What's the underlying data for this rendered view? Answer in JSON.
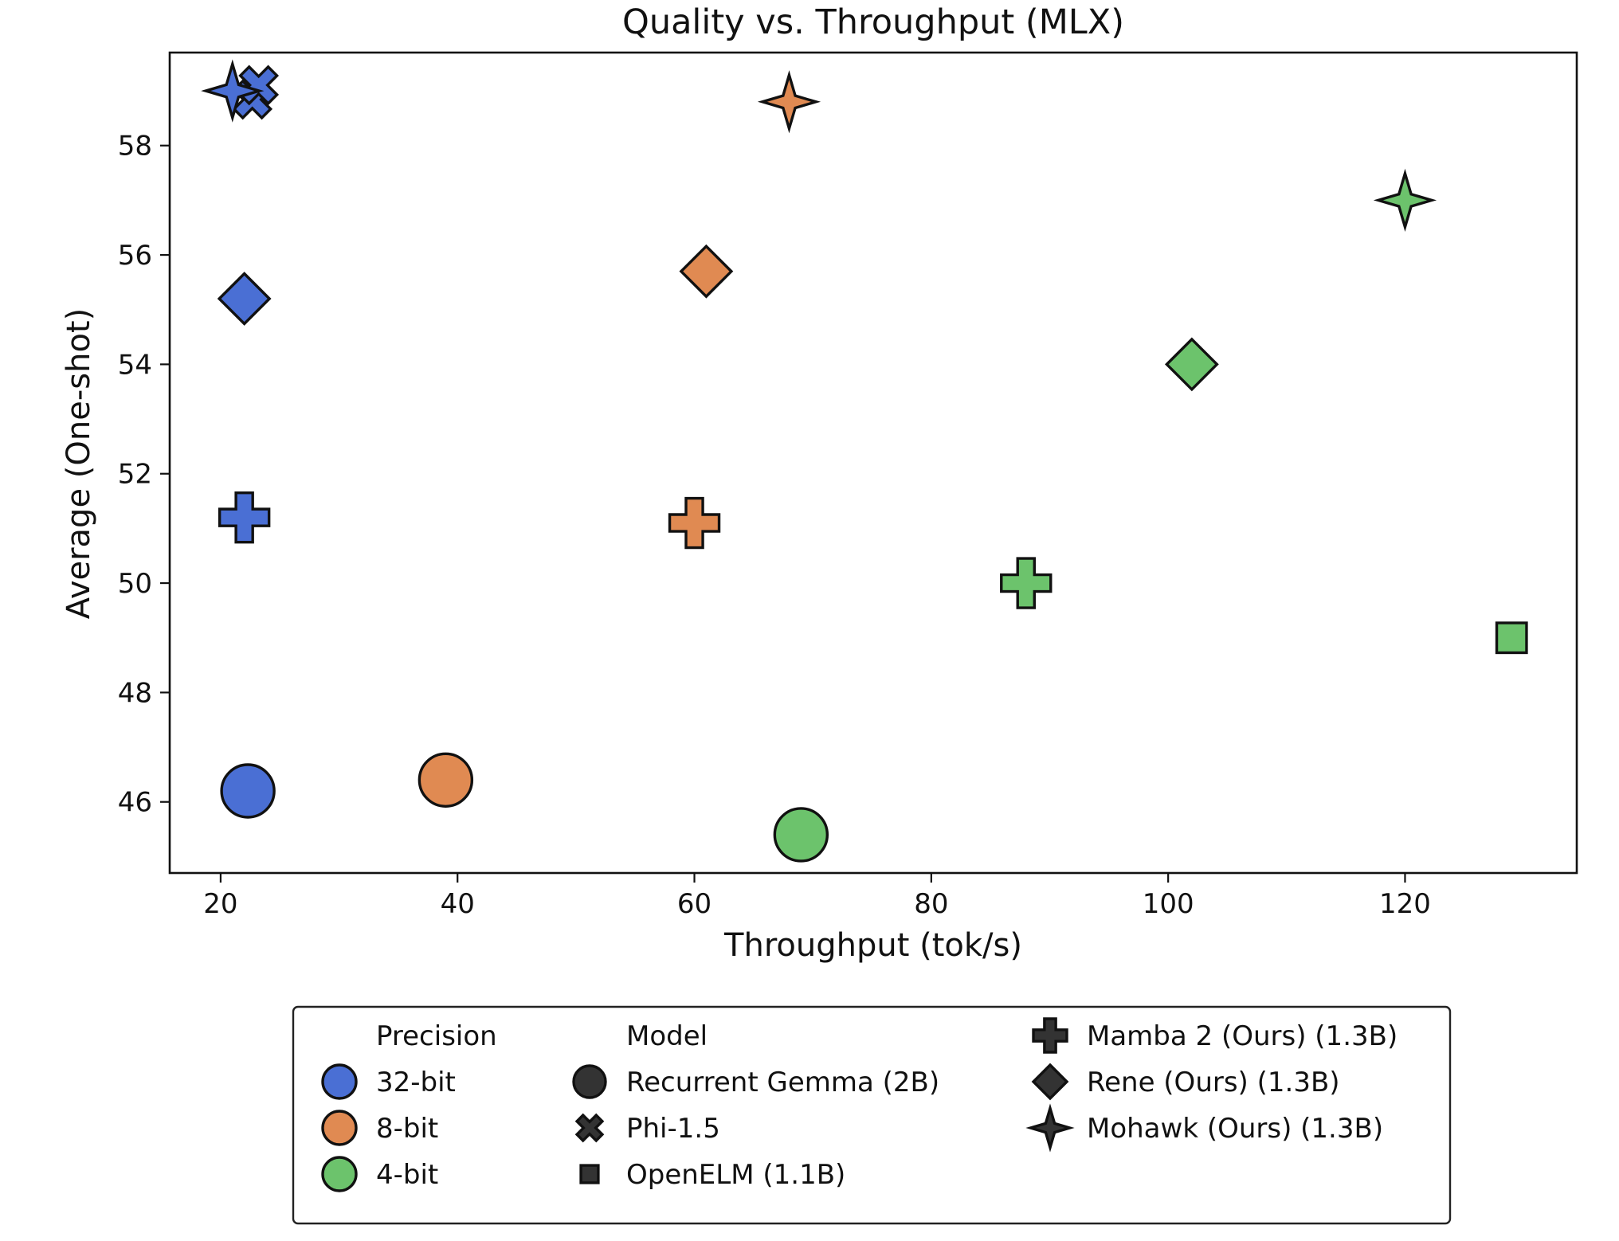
{
  "chart_data": {
    "type": "scatter",
    "title": "Quality vs. Throughput (MLX)",
    "xlabel": "Throughput (tok/s)",
    "ylabel": "Average (One-shot)",
    "xlim": [
      15.7,
      134.5
    ],
    "ylim": [
      44.7,
      59.7
    ],
    "xticks": [
      20,
      40,
      60,
      80,
      100,
      120
    ],
    "yticks": [
      46,
      48,
      50,
      52,
      54,
      56,
      58
    ],
    "grid": false,
    "legend_position": "below",
    "colors": {
      "32-bit": "#4a6fd4",
      "8-bit": "#e08a52",
      "4-bit": "#6cc36c",
      "edge": "#111111"
    },
    "points": [
      {
        "model": "Recurrent Gemma (2B)",
        "precision": "32-bit",
        "marker": "circle",
        "x": 22.3,
        "y": 46.2
      },
      {
        "model": "Recurrent Gemma (2B)",
        "precision": "8-bit",
        "marker": "circle",
        "x": 39.0,
        "y": 46.4
      },
      {
        "model": "Recurrent Gemma (2B)",
        "precision": "4-bit",
        "marker": "circle",
        "x": 69.0,
        "y": 45.4
      },
      {
        "model": "Phi-1.5",
        "precision": "32-bit",
        "marker": "x",
        "x": 22.0,
        "y": 58.9
      },
      {
        "model": "Mamba 2 (Ours) (1.3B)",
        "precision": "32-bit",
        "marker": "plus",
        "x": 22.0,
        "y": 51.2
      },
      {
        "model": "Mamba 2 (Ours) (1.3B)",
        "precision": "8-bit",
        "marker": "plus",
        "x": 60.0,
        "y": 51.1
      },
      {
        "model": "Mamba 2 (Ours) (1.3B)",
        "precision": "4-bit",
        "marker": "plus",
        "x": 88.0,
        "y": 50.0
      },
      {
        "model": "Rene (Ours) (1.3B)",
        "precision": "32-bit",
        "marker": "diamond",
        "x": 22.0,
        "y": 55.2
      },
      {
        "model": "Rene (Ours) (1.3B)",
        "precision": "8-bit",
        "marker": "diamond",
        "x": 61.0,
        "y": 55.7
      },
      {
        "model": "Rene (Ours) (1.3B)",
        "precision": "4-bit",
        "marker": "diamond",
        "x": 102.0,
        "y": 54.0
      },
      {
        "model": "Mohawk (Ours) (1.3B)",
        "precision": "32-bit",
        "marker": "star4",
        "x": 21.0,
        "y": 59.0
      },
      {
        "model": "Mohawk (Ours) (1.3B)",
        "precision": "8-bit",
        "marker": "star4",
        "x": 68.0,
        "y": 58.8
      },
      {
        "model": "Mohawk (Ours) (1.3B)",
        "precision": "4-bit",
        "marker": "star4",
        "x": 120.0,
        "y": 57.0
      },
      {
        "model": "OpenELM (1.1B)",
        "precision": "4-bit",
        "marker": "square",
        "x": 129.0,
        "y": 49.0
      }
    ],
    "legend": {
      "precision_title": "Precision",
      "precision_items": [
        {
          "label": "32-bit",
          "color": "#4a6fd4"
        },
        {
          "label": "8-bit",
          "color": "#e08a52"
        },
        {
          "label": "4-bit",
          "color": "#6cc36c"
        }
      ],
      "model_title": "Model",
      "model_items": [
        {
          "label": "Recurrent Gemma (2B)",
          "marker": "circle"
        },
        {
          "label": "Phi-1.5",
          "marker": "x"
        },
        {
          "label": "OpenELM (1.1B)",
          "marker": "square"
        },
        {
          "label": "Mamba 2 (Ours) (1.3B)",
          "marker": "plus"
        },
        {
          "label": "Rene (Ours) (1.3B)",
          "marker": "diamond"
        },
        {
          "label": "Mohawk (Ours) (1.3B)",
          "marker": "star4"
        }
      ]
    }
  }
}
